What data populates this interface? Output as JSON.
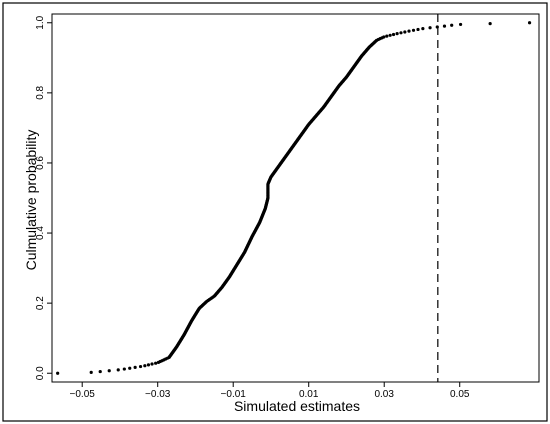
{
  "chart_data": {
    "type": "scatter",
    "title": "",
    "xlabel": "Simulated estimates",
    "ylabel": "Culmulative probability",
    "xlim": [
      -0.058,
      0.071
    ],
    "ylim": [
      -0.025,
      1.025
    ],
    "x_ticks": [
      -0.05,
      -0.03,
      -0.01,
      0.01,
      0.03,
      0.05
    ],
    "x_tick_labels": [
      "−0.05",
      "−0.03",
      "−0.01",
      "0.01",
      "0.03",
      "0.05"
    ],
    "y_ticks": [
      0.0,
      0.2,
      0.4,
      0.6,
      0.8,
      1.0
    ],
    "y_tick_labels": [
      "0.0",
      "0.2",
      "0.4",
      "0.6",
      "0.8",
      "1.0"
    ],
    "reference_line": {
      "x": 0.0442,
      "style": "dashed",
      "color": "#000000"
    },
    "grid": false,
    "marker_color": "#000000",
    "curve_knots": [
      [
        -0.0565,
        0.0
      ],
      [
        -0.048,
        0.002
      ],
      [
        -0.044,
        0.006
      ],
      [
        -0.04,
        0.01
      ],
      [
        -0.034,
        0.02
      ],
      [
        -0.03,
        0.03
      ],
      [
        -0.027,
        0.045
      ],
      [
        -0.025,
        0.075
      ],
      [
        -0.023,
        0.11
      ],
      [
        -0.021,
        0.15
      ],
      [
        -0.019,
        0.185
      ],
      [
        -0.017,
        0.205
      ],
      [
        -0.015,
        0.22
      ],
      [
        -0.013,
        0.245
      ],
      [
        -0.011,
        0.275
      ],
      [
        -0.009,
        0.31
      ],
      [
        -0.007,
        0.345
      ],
      [
        -0.005,
        0.39
      ],
      [
        -0.003,
        0.43
      ],
      [
        -0.0015,
        0.47
      ],
      [
        -0.0008,
        0.5
      ],
      [
        -0.0008,
        0.54
      ],
      [
        0.0,
        0.56
      ],
      [
        0.002,
        0.59
      ],
      [
        0.004,
        0.62
      ],
      [
        0.006,
        0.65
      ],
      [
        0.008,
        0.68
      ],
      [
        0.01,
        0.71
      ],
      [
        0.012,
        0.735
      ],
      [
        0.014,
        0.76
      ],
      [
        0.016,
        0.79
      ],
      [
        0.018,
        0.82
      ],
      [
        0.02,
        0.845
      ],
      [
        0.022,
        0.875
      ],
      [
        0.024,
        0.905
      ],
      [
        0.026,
        0.93
      ],
      [
        0.028,
        0.95
      ],
      [
        0.03,
        0.96
      ],
      [
        0.033,
        0.968
      ],
      [
        0.036,
        0.975
      ],
      [
        0.04,
        0.983
      ],
      [
        0.044,
        0.988
      ],
      [
        0.048,
        0.993
      ],
      [
        0.051,
        0.996
      ],
      [
        0.0685,
        1.0
      ]
    ],
    "n_points": 420
  }
}
